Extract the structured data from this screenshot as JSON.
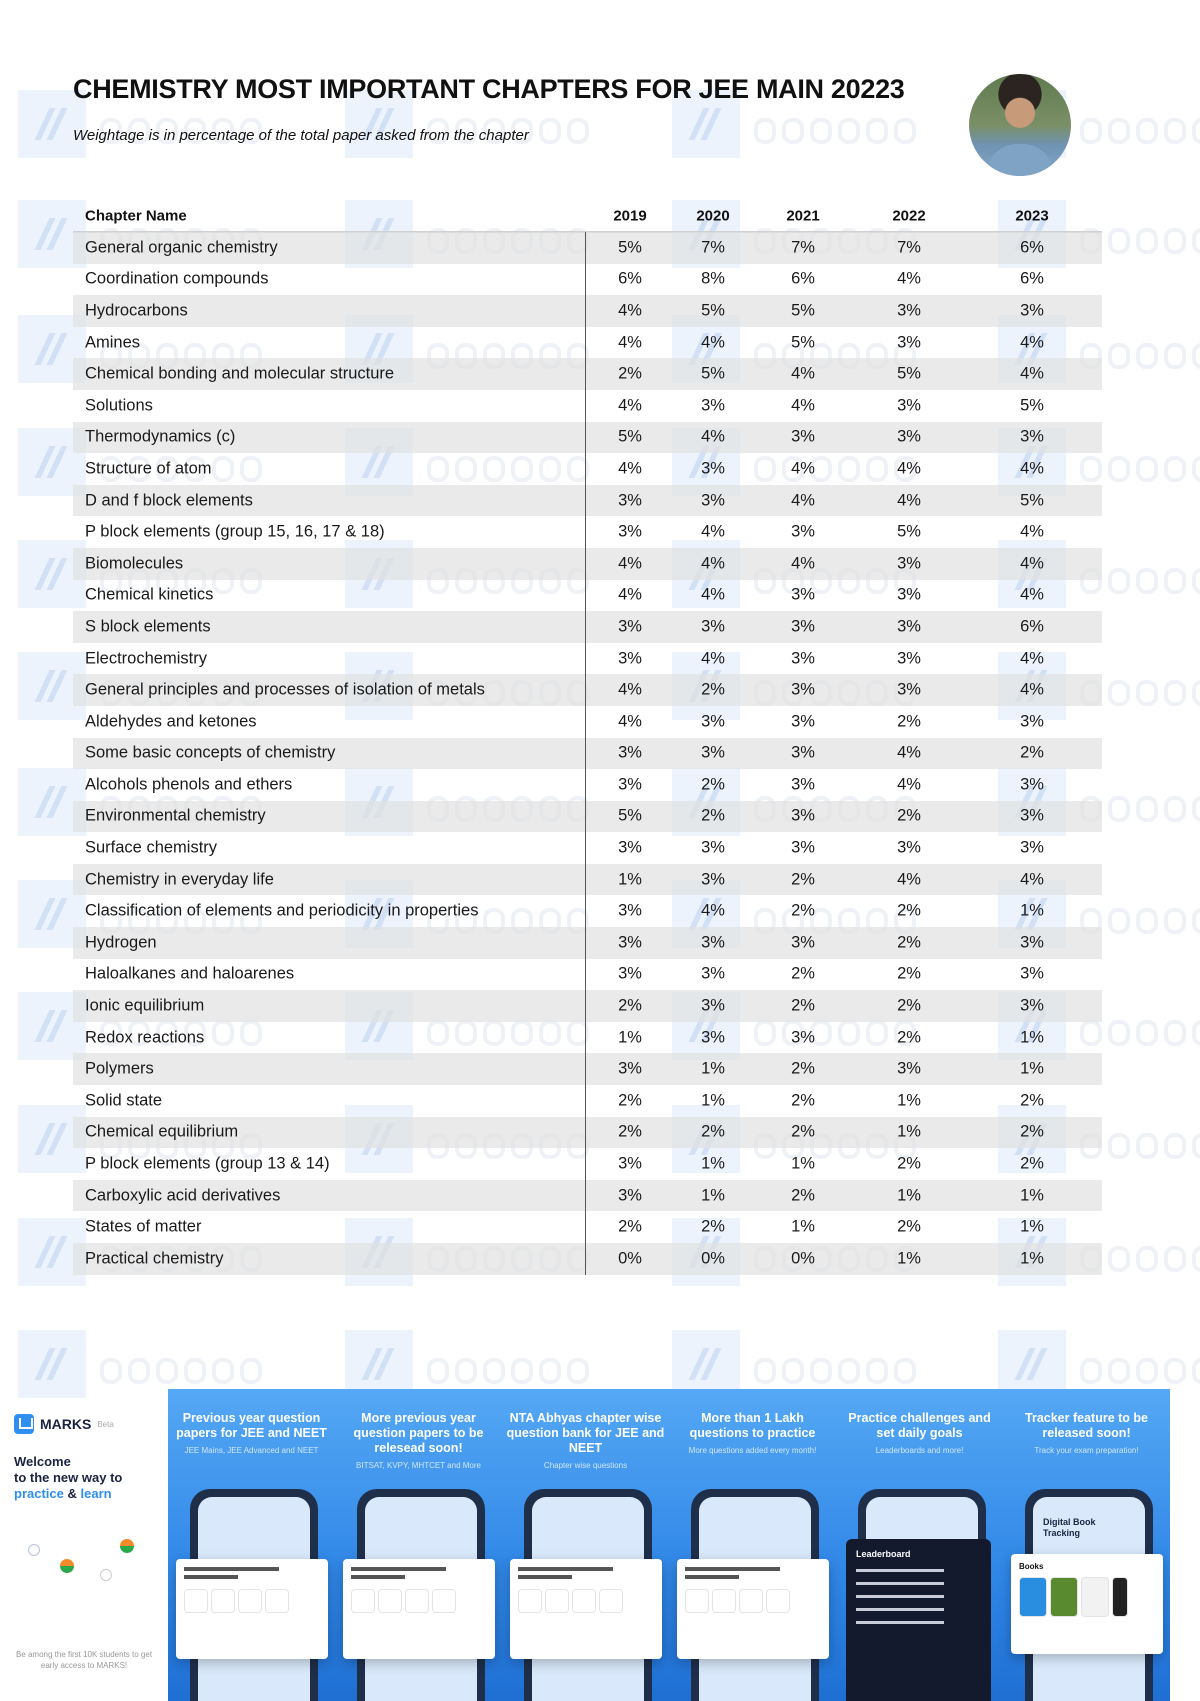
{
  "header": {
    "title": "CHEMISTRY MOST IMPORTANT CHAPTERS FOR JEE MAIN 20223",
    "subtitle": "Weightage is in percentage of the total paper asked from the chapter"
  },
  "watermark": "mathongo",
  "table": {
    "columns": [
      "Chapter Name",
      "2019",
      "2020",
      "2021",
      "2022",
      "2023"
    ],
    "rows": [
      [
        "General organic chemistry",
        "5%",
        "7%",
        "7%",
        "7%",
        "6%"
      ],
      [
        "Coordination compounds",
        "6%",
        "8%",
        "6%",
        "4%",
        "6%"
      ],
      [
        "Hydrocarbons",
        "4%",
        "5%",
        "5%",
        "3%",
        "3%"
      ],
      [
        "Amines",
        "4%",
        "4%",
        "5%",
        "3%",
        "4%"
      ],
      [
        "Chemical bonding and molecular structure",
        "2%",
        "5%",
        "4%",
        "5%",
        "4%"
      ],
      [
        "Solutions",
        "4%",
        "3%",
        "4%",
        "3%",
        "5%"
      ],
      [
        "Thermodynamics (c)",
        "5%",
        "4%",
        "3%",
        "3%",
        "3%"
      ],
      [
        "Structure of atom",
        "4%",
        "3%",
        "4%",
        "4%",
        "4%"
      ],
      [
        "D and f block elements",
        "3%",
        "3%",
        "4%",
        "4%",
        "5%"
      ],
      [
        "P block elements (group 15, 16, 17 & 18)",
        "3%",
        "4%",
        "3%",
        "5%",
        "4%"
      ],
      [
        "Biomolecules",
        "4%",
        "4%",
        "4%",
        "3%",
        "4%"
      ],
      [
        "Chemical kinetics",
        "4%",
        "4%",
        "3%",
        "3%",
        "4%"
      ],
      [
        "S block elements",
        "3%",
        "3%",
        "3%",
        "3%",
        "6%"
      ],
      [
        "Electrochemistry",
        "3%",
        "4%",
        "3%",
        "3%",
        "4%"
      ],
      [
        "General principles and processes of isolation of metals",
        "4%",
        "2%",
        "3%",
        "3%",
        "4%"
      ],
      [
        "Aldehydes and ketones",
        "4%",
        "3%",
        "3%",
        "2%",
        "3%"
      ],
      [
        "Some basic concepts of chemistry",
        "3%",
        "3%",
        "3%",
        "4%",
        "2%"
      ],
      [
        "Alcohols phenols and ethers",
        "3%",
        "2%",
        "3%",
        "4%",
        "3%"
      ],
      [
        "Environmental chemistry",
        "5%",
        "2%",
        "3%",
        "2%",
        "3%"
      ],
      [
        "Surface chemistry",
        "3%",
        "3%",
        "3%",
        "3%",
        "3%"
      ],
      [
        "Chemistry in everyday life",
        "1%",
        "3%",
        "2%",
        "4%",
        "4%"
      ],
      [
        "Classification of elements and periodicity in properties",
        "3%",
        "4%",
        "2%",
        "2%",
        "1%"
      ],
      [
        "Hydrogen",
        "3%",
        "3%",
        "3%",
        "2%",
        "3%"
      ],
      [
        "Haloalkanes and haloarenes",
        "3%",
        "3%",
        "2%",
        "2%",
        "3%"
      ],
      [
        "Ionic equilibrium",
        "2%",
        "3%",
        "2%",
        "2%",
        "3%"
      ],
      [
        "Redox reactions",
        "1%",
        "3%",
        "3%",
        "2%",
        "1%"
      ],
      [
        "Polymers",
        "3%",
        "1%",
        "2%",
        "3%",
        "1%"
      ],
      [
        "Solid state",
        "2%",
        "1%",
        "2%",
        "1%",
        "2%"
      ],
      [
        "Chemical equilibrium",
        "2%",
        "2%",
        "2%",
        "1%",
        "2%"
      ],
      [
        "P block elements (group 13 & 14)",
        "3%",
        "1%",
        "1%",
        "2%",
        "2%"
      ],
      [
        "Carboxylic acid derivatives",
        "3%",
        "1%",
        "2%",
        "1%",
        "1%"
      ],
      [
        "States of matter",
        "2%",
        "2%",
        "1%",
        "2%",
        "1%"
      ],
      [
        "Practical chemistry",
        "0%",
        "0%",
        "0%",
        "1%",
        "1%"
      ]
    ]
  },
  "promo": {
    "brand": "MARKS",
    "beta": "Beta",
    "welcome_1": "Welcome",
    "welcome_2": "to the new way to",
    "practice": "practice",
    "amp": "&",
    "learn": "learn",
    "early_access": "Be among the first 10K students to get early access to MARKS!",
    "accent": "#2f8ff0",
    "features": [
      {
        "title": "Previous year question papers for JEE and NEET",
        "sub": "JEE Mains, JEE Advanced and NEET"
      },
      {
        "title": "More previous year question papers to be relesead soon!",
        "sub": "BITSAT, KVPY, MHTCET and More"
      },
      {
        "title": "NTA Abhyas chapter wise question bank for JEE and NEET",
        "sub": "Chapter wise questions"
      },
      {
        "title": "More than 1 Lakh questions to practice",
        "sub": "More questions added every month!"
      },
      {
        "title": "Practice challenges and set daily goals",
        "sub": "Leaderboards and more!"
      },
      {
        "title": "Tracker feature to be released soon!",
        "sub": "Track your exam preparation!"
      }
    ],
    "leaderboard_title": "Leaderboard",
    "digital_book_title": "Digital Book Tracking",
    "books_label": "Books"
  }
}
